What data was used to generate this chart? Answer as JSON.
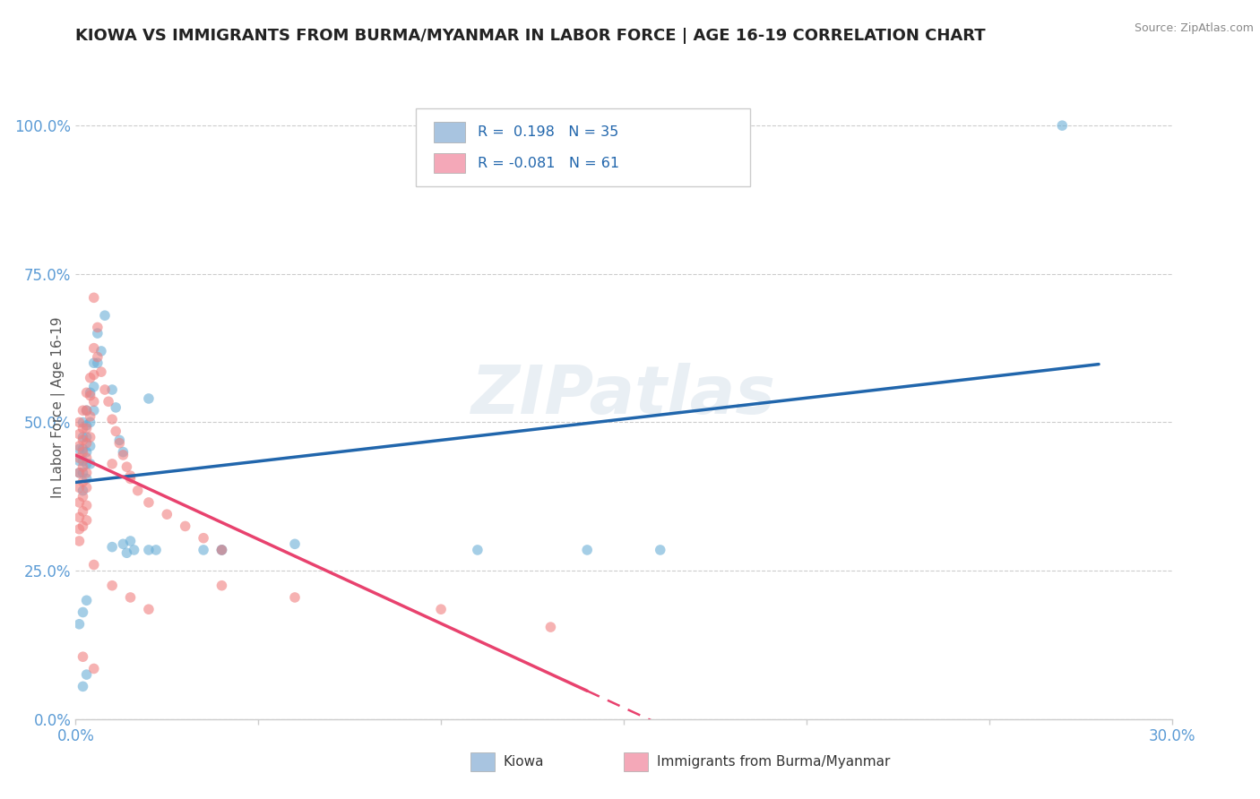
{
  "title": "KIOWA VS IMMIGRANTS FROM BURMA/MYANMAR IN LABOR FORCE | AGE 16-19 CORRELATION CHART",
  "source": "Source: ZipAtlas.com",
  "ylabel": "In Labor Force | Age 16-19",
  "xlim": [
    0.0,
    0.3
  ],
  "ylim": [
    0.0,
    1.05
  ],
  "ytick_labels": [
    "0.0%",
    "25.0%",
    "50.0%",
    "75.0%",
    "100.0%"
  ],
  "ytick_vals": [
    0.0,
    0.25,
    0.5,
    0.75,
    1.0
  ],
  "xtick_vals": [
    0.0,
    0.05,
    0.1,
    0.15,
    0.2,
    0.25,
    0.3
  ],
  "watermark": "ZIPatlas",
  "kiowa_color": "#6aaed6",
  "burma_color": "#f08080",
  "kiowa_legend_color": "#a8c4e0",
  "burma_legend_color": "#f4a8b8",
  "title_color": "#222222",
  "axis_color": "#5b9bd5",
  "grid_color": "#cccccc",
  "background_color": "#ffffff",
  "kiowa_points": [
    [
      0.001,
      0.455
    ],
    [
      0.001,
      0.435
    ],
    [
      0.001,
      0.415
    ],
    [
      0.002,
      0.5
    ],
    [
      0.002,
      0.475
    ],
    [
      0.002,
      0.455
    ],
    [
      0.002,
      0.435
    ],
    [
      0.002,
      0.415
    ],
    [
      0.002,
      0.385
    ],
    [
      0.003,
      0.52
    ],
    [
      0.003,
      0.495
    ],
    [
      0.003,
      0.475
    ],
    [
      0.003,
      0.45
    ],
    [
      0.003,
      0.43
    ],
    [
      0.003,
      0.405
    ],
    [
      0.004,
      0.55
    ],
    [
      0.004,
      0.5
    ],
    [
      0.004,
      0.46
    ],
    [
      0.004,
      0.43
    ],
    [
      0.005,
      0.6
    ],
    [
      0.005,
      0.56
    ],
    [
      0.005,
      0.52
    ],
    [
      0.006,
      0.65
    ],
    [
      0.006,
      0.6
    ],
    [
      0.007,
      0.62
    ],
    [
      0.008,
      0.68
    ],
    [
      0.01,
      0.555
    ],
    [
      0.01,
      0.29
    ],
    [
      0.011,
      0.525
    ],
    [
      0.012,
      0.47
    ],
    [
      0.013,
      0.45
    ],
    [
      0.013,
      0.295
    ],
    [
      0.014,
      0.28
    ],
    [
      0.015,
      0.3
    ],
    [
      0.016,
      0.285
    ],
    [
      0.02,
      0.54
    ],
    [
      0.02,
      0.285
    ],
    [
      0.022,
      0.285
    ],
    [
      0.035,
      0.285
    ],
    [
      0.04,
      0.285
    ],
    [
      0.04,
      0.285
    ],
    [
      0.06,
      0.295
    ],
    [
      0.11,
      0.285
    ],
    [
      0.14,
      0.285
    ],
    [
      0.16,
      0.285
    ],
    [
      0.001,
      0.16
    ],
    [
      0.002,
      0.18
    ],
    [
      0.002,
      0.055
    ],
    [
      0.003,
      0.075
    ],
    [
      0.003,
      0.2
    ],
    [
      0.27,
      1.0
    ]
  ],
  "burma_points": [
    [
      0.001,
      0.5
    ],
    [
      0.001,
      0.48
    ],
    [
      0.001,
      0.46
    ],
    [
      0.001,
      0.44
    ],
    [
      0.001,
      0.415
    ],
    [
      0.001,
      0.39
    ],
    [
      0.001,
      0.365
    ],
    [
      0.001,
      0.34
    ],
    [
      0.001,
      0.32
    ],
    [
      0.001,
      0.3
    ],
    [
      0.002,
      0.52
    ],
    [
      0.002,
      0.49
    ],
    [
      0.002,
      0.47
    ],
    [
      0.002,
      0.45
    ],
    [
      0.002,
      0.425
    ],
    [
      0.002,
      0.4
    ],
    [
      0.002,
      0.375
    ],
    [
      0.002,
      0.35
    ],
    [
      0.002,
      0.325
    ],
    [
      0.003,
      0.55
    ],
    [
      0.003,
      0.52
    ],
    [
      0.003,
      0.49
    ],
    [
      0.003,
      0.465
    ],
    [
      0.003,
      0.44
    ],
    [
      0.003,
      0.415
    ],
    [
      0.003,
      0.39
    ],
    [
      0.003,
      0.36
    ],
    [
      0.003,
      0.335
    ],
    [
      0.004,
      0.575
    ],
    [
      0.004,
      0.545
    ],
    [
      0.004,
      0.51
    ],
    [
      0.004,
      0.475
    ],
    [
      0.005,
      0.625
    ],
    [
      0.005,
      0.58
    ],
    [
      0.005,
      0.535
    ],
    [
      0.005,
      0.71
    ],
    [
      0.005,
      0.26
    ],
    [
      0.006,
      0.66
    ],
    [
      0.006,
      0.61
    ],
    [
      0.007,
      0.585
    ],
    [
      0.008,
      0.555
    ],
    [
      0.009,
      0.535
    ],
    [
      0.01,
      0.505
    ],
    [
      0.01,
      0.43
    ],
    [
      0.01,
      0.225
    ],
    [
      0.011,
      0.485
    ],
    [
      0.012,
      0.465
    ],
    [
      0.013,
      0.445
    ],
    [
      0.014,
      0.425
    ],
    [
      0.015,
      0.405
    ],
    [
      0.015,
      0.41
    ],
    [
      0.015,
      0.205
    ],
    [
      0.017,
      0.385
    ],
    [
      0.02,
      0.365
    ],
    [
      0.02,
      0.185
    ],
    [
      0.025,
      0.345
    ],
    [
      0.03,
      0.325
    ],
    [
      0.035,
      0.305
    ],
    [
      0.04,
      0.285
    ],
    [
      0.04,
      0.225
    ],
    [
      0.06,
      0.205
    ],
    [
      0.1,
      0.185
    ],
    [
      0.13,
      0.155
    ],
    [
      0.002,
      0.105
    ],
    [
      0.005,
      0.085
    ]
  ]
}
